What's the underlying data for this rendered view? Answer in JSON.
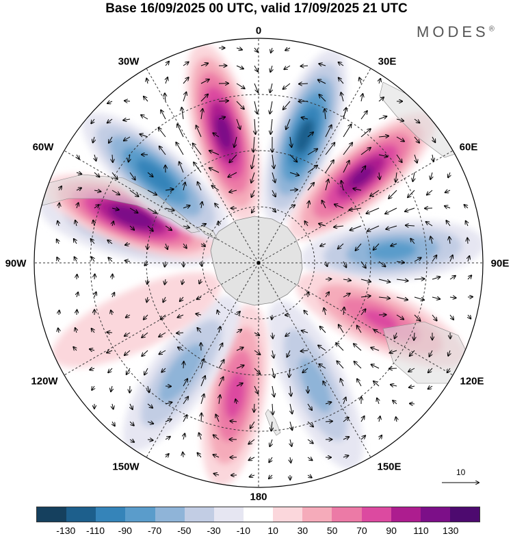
{
  "title": "Base 16/09/2025 00 UTC, valid 17/09/2025 21 UTC",
  "brand": "MODES",
  "brand_mark": "®",
  "longitude_labels": {
    "lon_0": "0",
    "lon_30e": "30E",
    "lon_60e": "60E",
    "lon_90e": "90E",
    "lon_120e": "120E",
    "lon_150e": "150E",
    "lon_180": "180",
    "lon_150w": "150W",
    "lon_120w": "120W",
    "lon_90w": "90W",
    "lon_60w": "60W",
    "lon_30w": "30W"
  },
  "reference_vector": {
    "label": "10"
  },
  "colorbar": {
    "labels": [
      "-130",
      "-110",
      "-90",
      "-70",
      "-50",
      "-30",
      "-10",
      "10",
      "30",
      "50",
      "70",
      "90",
      "110",
      "130"
    ],
    "colors": [
      "#15405e",
      "#1d5f8c",
      "#3584b9",
      "#5a9ccb",
      "#8fb4d8",
      "#c2cde4",
      "#e6e6f2",
      "#ffffff",
      "#fbd7dc",
      "#f5abba",
      "#ec7aa6",
      "#dc4aa0",
      "#ad1d8f",
      "#7c0f88",
      "#4d0a6f"
    ]
  },
  "map_data": {
    "projection": "south-polar-stereographic",
    "field": "anomaly",
    "lobes": [
      {
        "lon": 345,
        "value": 115
      },
      {
        "lon": 20,
        "value": -115
      },
      {
        "lon": 50,
        "value": 110
      },
      {
        "lon": 85,
        "value": -75
      },
      {
        "lon": 115,
        "value": 70
      },
      {
        "lon": 155,
        "value": -55
      },
      {
        "lon": 190,
        "value": 75
      },
      {
        "lon": 215,
        "value": -60
      },
      {
        "lon": 245,
        "value": 25
      },
      {
        "lon": 285,
        "value": -65
      },
      {
        "lon": 290,
        "value": 125
      },
      {
        "lon": 310,
        "value": -100
      }
    ]
  }
}
